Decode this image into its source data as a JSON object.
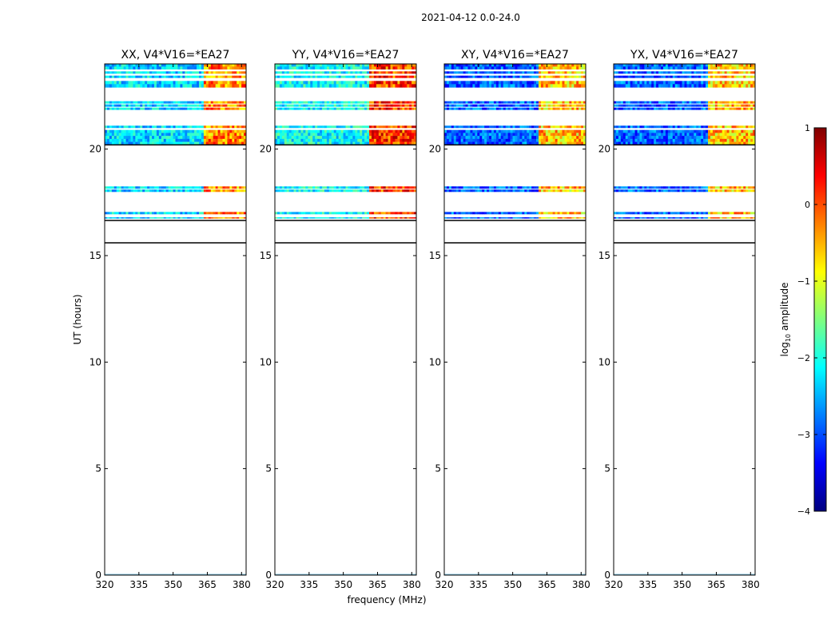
{
  "suptitle": "2021-04-12 0.0-24.0",
  "xlabel": "frequency (MHz)",
  "ylabel": "UT (hours)",
  "xlim": [
    320,
    382
  ],
  "ylim": [
    0,
    24
  ],
  "xticks": [
    320,
    335,
    350,
    365,
    380
  ],
  "yticks": [
    0,
    5,
    10,
    15,
    20
  ],
  "colorbar": {
    "label_prefix": "log",
    "label_sub": "10",
    "label_suffix": " amplitude",
    "range": [
      -4,
      1
    ],
    "ticks": [
      1,
      0,
      -1,
      -2,
      -3,
      -4
    ],
    "tick_labels": [
      "1",
      "0",
      "−1",
      "−2",
      "−3",
      "−4"
    ],
    "colormap": "jet",
    "colors": [
      "#00007f",
      "#0000ff",
      "#007fff",
      "#00ffff",
      "#7fff7f",
      "#ffff00",
      "#ff7f00",
      "#ff0000",
      "#7f0000"
    ]
  },
  "chart_data": [
    {
      "type": "heatmap",
      "title": "XX, V4*V16=*EA27",
      "base_level": -2.3,
      "rfi_level": -0.3,
      "data_bands_hours": [
        [
          20.2,
          20.9
        ],
        [
          21.0,
          21.1
        ],
        [
          21.85,
          21.95
        ],
        [
          22.0,
          22.1
        ],
        [
          22.15,
          22.25
        ],
        [
          22.9,
          23.2
        ],
        [
          23.35,
          23.45
        ],
        [
          23.55,
          23.65
        ],
        [
          23.75,
          24.0
        ],
        [
          18.0,
          18.1
        ],
        [
          18.15,
          18.25
        ],
        [
          16.95,
          17.05
        ],
        [
          16.75,
          16.8
        ]
      ],
      "line_hours": [
        20.2,
        16.65,
        15.6
      ],
      "rfi_freq_ranges_mhz": [
        [
          363,
          382
        ]
      ]
    },
    {
      "type": "heatmap",
      "title": "YY, V4*V16=*EA27",
      "base_level": -2.1,
      "rfi_level": 0.1,
      "data_bands_hours": [
        [
          20.2,
          20.9
        ],
        [
          21.0,
          21.1
        ],
        [
          21.85,
          21.95
        ],
        [
          22.0,
          22.1
        ],
        [
          22.15,
          22.25
        ],
        [
          22.9,
          23.2
        ],
        [
          23.35,
          23.45
        ],
        [
          23.55,
          23.65
        ],
        [
          23.75,
          24.0
        ],
        [
          18.0,
          18.1
        ],
        [
          18.15,
          18.25
        ],
        [
          16.95,
          17.05
        ],
        [
          16.75,
          16.8
        ]
      ],
      "line_hours": [
        20.2,
        16.65,
        15.6
      ],
      "rfi_freq_ranges_mhz": [
        [
          361,
          382
        ]
      ]
    },
    {
      "type": "heatmap",
      "title": "XY, V4*V16=*EA27",
      "base_level": -2.9,
      "rfi_level": -0.6,
      "data_bands_hours": [
        [
          20.2,
          20.9
        ],
        [
          21.0,
          21.1
        ],
        [
          21.85,
          21.95
        ],
        [
          22.0,
          22.1
        ],
        [
          22.15,
          22.25
        ],
        [
          22.9,
          23.2
        ],
        [
          23.35,
          23.45
        ],
        [
          23.55,
          23.65
        ],
        [
          23.75,
          24.0
        ],
        [
          18.0,
          18.1
        ],
        [
          18.15,
          18.25
        ],
        [
          16.95,
          17.05
        ],
        [
          16.75,
          16.8
        ]
      ],
      "line_hours": [
        20.2,
        16.65,
        15.6
      ],
      "rfi_freq_ranges_mhz": [
        [
          361,
          382
        ]
      ]
    },
    {
      "type": "heatmap",
      "title": "YX, V4*V16=*EA27",
      "base_level": -2.9,
      "rfi_level": -0.6,
      "data_bands_hours": [
        [
          20.2,
          20.9
        ],
        [
          21.0,
          21.1
        ],
        [
          21.85,
          21.95
        ],
        [
          22.0,
          22.1
        ],
        [
          22.15,
          22.25
        ],
        [
          22.9,
          23.2
        ],
        [
          23.35,
          23.45
        ],
        [
          23.55,
          23.65
        ],
        [
          23.75,
          24.0
        ],
        [
          18.0,
          18.1
        ],
        [
          18.15,
          18.25
        ],
        [
          16.95,
          17.05
        ],
        [
          16.75,
          16.8
        ]
      ],
      "line_hours": [
        20.2,
        16.65,
        15.6
      ],
      "rfi_freq_ranges_mhz": [
        [
          361,
          382
        ]
      ]
    }
  ]
}
